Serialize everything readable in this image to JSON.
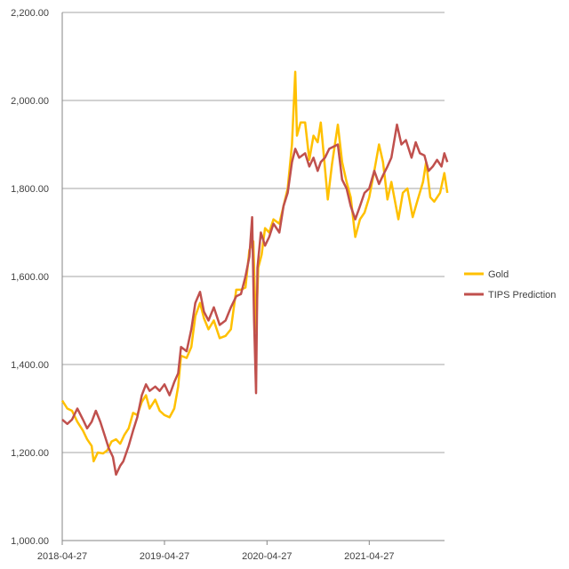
{
  "chart_data": {
    "type": "line",
    "title": "",
    "xlabel": "",
    "ylabel": "",
    "ylim": [
      1000,
      2200
    ],
    "yticks": [
      "1,000.00",
      "1,200.00",
      "1,400.00",
      "1,600.00",
      "1,800.00",
      "2,000.00",
      "2,200.00"
    ],
    "ytick_values": [
      1000,
      1200,
      1400,
      1600,
      1800,
      2000,
      2200
    ],
    "xlim": [
      "2018-04-27",
      "2022-01-31"
    ],
    "xticks": [
      "2018-04-27",
      "2019-04-27",
      "2020-04-27",
      "2021-04-27"
    ],
    "grid": "horizontal",
    "legend_position": "right",
    "series": [
      {
        "name": "Gold",
        "color": "#FFC000",
        "points": [
          [
            "2018-04-27",
            1318
          ],
          [
            "2018-05-15",
            1300
          ],
          [
            "2018-06-01",
            1295
          ],
          [
            "2018-06-20",
            1270
          ],
          [
            "2018-07-10",
            1250
          ],
          [
            "2018-07-25",
            1230
          ],
          [
            "2018-08-10",
            1215
          ],
          [
            "2018-08-17",
            1180
          ],
          [
            "2018-09-01",
            1200
          ],
          [
            "2018-09-20",
            1198
          ],
          [
            "2018-10-05",
            1205
          ],
          [
            "2018-10-20",
            1225
          ],
          [
            "2018-11-05",
            1230
          ],
          [
            "2018-11-20",
            1220
          ],
          [
            "2018-12-05",
            1240
          ],
          [
            "2018-12-20",
            1255
          ],
          [
            "2019-01-05",
            1290
          ],
          [
            "2019-01-20",
            1285
          ],
          [
            "2019-02-05",
            1315
          ],
          [
            "2019-02-20",
            1330
          ],
          [
            "2019-03-05",
            1300
          ],
          [
            "2019-03-25",
            1320
          ],
          [
            "2019-04-10",
            1295
          ],
          [
            "2019-04-27",
            1285
          ],
          [
            "2019-05-15",
            1280
          ],
          [
            "2019-06-01",
            1300
          ],
          [
            "2019-06-15",
            1350
          ],
          [
            "2019-06-25",
            1420
          ],
          [
            "2019-07-15",
            1415
          ],
          [
            "2019-08-01",
            1440
          ],
          [
            "2019-08-15",
            1510
          ],
          [
            "2019-09-01",
            1540
          ],
          [
            "2019-09-15",
            1505
          ],
          [
            "2019-10-01",
            1480
          ],
          [
            "2019-10-20",
            1500
          ],
          [
            "2019-11-10",
            1460
          ],
          [
            "2019-12-01",
            1465
          ],
          [
            "2019-12-20",
            1480
          ],
          [
            "2020-01-08",
            1570
          ],
          [
            "2020-01-25",
            1570
          ],
          [
            "2020-02-10",
            1575
          ],
          [
            "2020-02-24",
            1660
          ],
          [
            "2020-03-09",
            1680
          ],
          [
            "2020-03-19",
            1475
          ],
          [
            "2020-03-27",
            1620
          ],
          [
            "2020-04-08",
            1650
          ],
          [
            "2020-04-20",
            1710
          ],
          [
            "2020-05-05",
            1700
          ],
          [
            "2020-05-20",
            1730
          ],
          [
            "2020-06-10",
            1720
          ],
          [
            "2020-06-25",
            1760
          ],
          [
            "2020-07-10",
            1800
          ],
          [
            "2020-07-25",
            1900
          ],
          [
            "2020-08-06",
            2065
          ],
          [
            "2020-08-12",
            1920
          ],
          [
            "2020-08-25",
            1950
          ],
          [
            "2020-09-10",
            1950
          ],
          [
            "2020-09-25",
            1865
          ],
          [
            "2020-10-10",
            1920
          ],
          [
            "2020-10-25",
            1905
          ],
          [
            "2020-11-05",
            1950
          ],
          [
            "2020-11-15",
            1880
          ],
          [
            "2020-11-30",
            1775
          ],
          [
            "2020-12-15",
            1855
          ],
          [
            "2021-01-05",
            1945
          ],
          [
            "2021-01-20",
            1860
          ],
          [
            "2021-02-05",
            1815
          ],
          [
            "2021-02-20",
            1780
          ],
          [
            "2021-03-08",
            1690
          ],
          [
            "2021-03-25",
            1730
          ],
          [
            "2021-04-10",
            1745
          ],
          [
            "2021-04-27",
            1780
          ],
          [
            "2021-05-15",
            1840
          ],
          [
            "2021-06-01",
            1900
          ],
          [
            "2021-06-15",
            1860
          ],
          [
            "2021-07-01",
            1775
          ],
          [
            "2021-07-15",
            1815
          ],
          [
            "2021-08-09",
            1730
          ],
          [
            "2021-08-25",
            1790
          ],
          [
            "2021-09-10",
            1800
          ],
          [
            "2021-09-29",
            1735
          ],
          [
            "2021-10-15",
            1770
          ],
          [
            "2021-11-05",
            1815
          ],
          [
            "2021-11-16",
            1860
          ],
          [
            "2021-12-01",
            1780
          ],
          [
            "2021-12-15",
            1770
          ],
          [
            "2022-01-05",
            1790
          ],
          [
            "2022-01-20",
            1835
          ],
          [
            "2022-01-31",
            1790
          ]
        ]
      },
      {
        "name": "TIPS Prediction",
        "color": "#C0504D",
        "points": [
          [
            "2018-04-27",
            1275
          ],
          [
            "2018-05-15",
            1265
          ],
          [
            "2018-06-01",
            1275
          ],
          [
            "2018-06-20",
            1300
          ],
          [
            "2018-07-10",
            1275
          ],
          [
            "2018-07-25",
            1255
          ],
          [
            "2018-08-10",
            1270
          ],
          [
            "2018-08-25",
            1295
          ],
          [
            "2018-09-10",
            1270
          ],
          [
            "2018-09-25",
            1240
          ],
          [
            "2018-10-10",
            1210
          ],
          [
            "2018-10-25",
            1190
          ],
          [
            "2018-11-05",
            1150
          ],
          [
            "2018-11-20",
            1170
          ],
          [
            "2018-12-01",
            1180
          ],
          [
            "2018-12-20",
            1215
          ],
          [
            "2019-01-05",
            1250
          ],
          [
            "2019-01-20",
            1280
          ],
          [
            "2019-02-05",
            1330
          ],
          [
            "2019-02-20",
            1355
          ],
          [
            "2019-03-05",
            1340
          ],
          [
            "2019-03-25",
            1350
          ],
          [
            "2019-04-10",
            1340
          ],
          [
            "2019-04-27",
            1355
          ],
          [
            "2019-05-15",
            1330
          ],
          [
            "2019-06-01",
            1360
          ],
          [
            "2019-06-15",
            1380
          ],
          [
            "2019-06-25",
            1440
          ],
          [
            "2019-07-15",
            1430
          ],
          [
            "2019-08-01",
            1480
          ],
          [
            "2019-08-15",
            1540
          ],
          [
            "2019-09-01",
            1565
          ],
          [
            "2019-09-15",
            1520
          ],
          [
            "2019-10-01",
            1500
          ],
          [
            "2019-10-20",
            1530
          ],
          [
            "2019-11-10",
            1490
          ],
          [
            "2019-12-01",
            1500
          ],
          [
            "2019-12-20",
            1530
          ],
          [
            "2020-01-08",
            1555
          ],
          [
            "2020-01-25",
            1560
          ],
          [
            "2020-02-10",
            1600
          ],
          [
            "2020-02-24",
            1645
          ],
          [
            "2020-03-05",
            1735
          ],
          [
            "2020-03-12",
            1500
          ],
          [
            "2020-03-19",
            1335
          ],
          [
            "2020-03-24",
            1620
          ],
          [
            "2020-04-05",
            1700
          ],
          [
            "2020-04-20",
            1670
          ],
          [
            "2020-05-05",
            1690
          ],
          [
            "2020-05-20",
            1720
          ],
          [
            "2020-06-10",
            1700
          ],
          [
            "2020-06-25",
            1760
          ],
          [
            "2020-07-10",
            1790
          ],
          [
            "2020-07-25",
            1860
          ],
          [
            "2020-08-06",
            1890
          ],
          [
            "2020-08-20",
            1870
          ],
          [
            "2020-09-10",
            1880
          ],
          [
            "2020-09-25",
            1850
          ],
          [
            "2020-10-10",
            1870
          ],
          [
            "2020-10-25",
            1840
          ],
          [
            "2020-11-05",
            1860
          ],
          [
            "2020-11-20",
            1870
          ],
          [
            "2020-12-05",
            1890
          ],
          [
            "2020-12-20",
            1895
          ],
          [
            "2021-01-05",
            1900
          ],
          [
            "2021-01-20",
            1820
          ],
          [
            "2021-02-05",
            1800
          ],
          [
            "2021-02-20",
            1760
          ],
          [
            "2021-03-08",
            1730
          ],
          [
            "2021-03-25",
            1760
          ],
          [
            "2021-04-10",
            1790
          ],
          [
            "2021-04-27",
            1800
          ],
          [
            "2021-05-15",
            1840
          ],
          [
            "2021-06-01",
            1810
          ],
          [
            "2021-06-15",
            1830
          ],
          [
            "2021-07-01",
            1850
          ],
          [
            "2021-07-15",
            1870
          ],
          [
            "2021-08-04",
            1945
          ],
          [
            "2021-08-20",
            1900
          ],
          [
            "2021-09-05",
            1910
          ],
          [
            "2021-09-25",
            1870
          ],
          [
            "2021-10-10",
            1905
          ],
          [
            "2021-10-25",
            1880
          ],
          [
            "2021-11-10",
            1875
          ],
          [
            "2021-11-25",
            1840
          ],
          [
            "2021-12-10",
            1850
          ],
          [
            "2021-12-25",
            1865
          ],
          [
            "2022-01-10",
            1850
          ],
          [
            "2022-01-20",
            1880
          ],
          [
            "2022-01-31",
            1860
          ]
        ]
      }
    ]
  }
}
